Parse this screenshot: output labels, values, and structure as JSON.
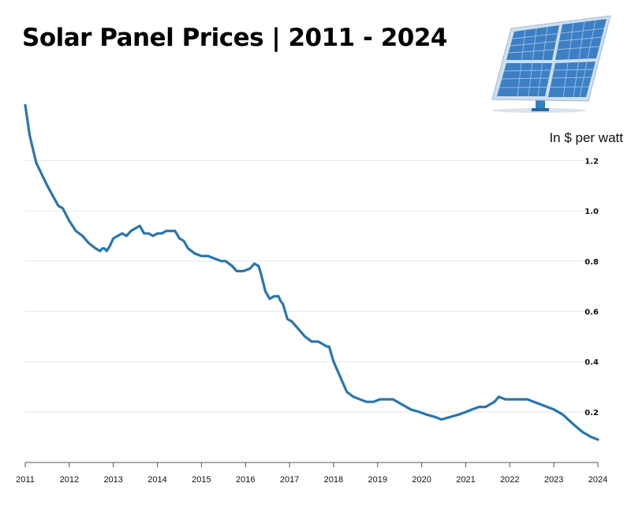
{
  "header": {
    "title": "Solar Panel Prices | 2011 - 2024",
    "unit_label": "In $ per watt"
  },
  "colors": {
    "line": "#2a76ae",
    "grid": "#e6e6e6",
    "axis": "#555555"
  },
  "icons": {
    "illustration": "solar-panel-icon"
  },
  "chart_data": {
    "type": "line",
    "title": "Solar Panel Prices | 2011 - 2024",
    "ylabel": "In $ per watt",
    "xlabel": "",
    "xlim": [
      2011,
      2024
    ],
    "ylim": [
      0.09,
      1.22
    ],
    "x_ticks": [
      "2011",
      "2012",
      "2013",
      "2014",
      "2015",
      "2016",
      "2017",
      "2018",
      "2019",
      "2020",
      "2021",
      "2022",
      "2023",
      "2024"
    ],
    "y_ticks": [
      "0.2",
      "0.4",
      "0.6",
      "0.8",
      "1.0",
      "1.2"
    ],
    "grid": true,
    "series": [
      {
        "x": [
          2011.0,
          2011.1,
          2011.25,
          2011.5,
          2011.75,
          2011.85,
          2012.0,
          2012.15,
          2012.3,
          2012.45,
          2012.6,
          2012.7,
          2012.75,
          2012.8,
          2012.85,
          2012.92,
          2013.0,
          2013.1,
          2013.2,
          2013.3,
          2013.4,
          2013.5,
          2013.6,
          2013.7,
          2013.8,
          2013.9,
          2014.0,
          2014.1,
          2014.2,
          2014.3,
          2014.4,
          2014.5,
          2014.6,
          2014.7,
          2014.85,
          2015.0,
          2015.15,
          2015.3,
          2015.45,
          2015.55,
          2015.7,
          2015.8,
          2015.95,
          2016.1,
          2016.2,
          2016.3,
          2016.35,
          2016.45,
          2016.55,
          2016.65,
          2016.75,
          2016.8,
          2016.85,
          2016.95,
          2017.05,
          2017.15,
          2017.25,
          2017.35,
          2017.5,
          2017.65,
          2017.75,
          2017.85,
          2017.9,
          2018.0,
          2018.15,
          2018.3,
          2018.45,
          2018.6,
          2018.75,
          2018.9,
          2019.05,
          2019.2,
          2019.35,
          2019.55,
          2019.75,
          2019.95,
          2020.1,
          2020.3,
          2020.45,
          2020.65,
          2020.85,
          2021.0,
          2021.15,
          2021.3,
          2021.45,
          2021.55,
          2021.65,
          2021.75,
          2021.9,
          2022.1,
          2022.25,
          2022.4,
          2022.55,
          2022.7,
          2022.85,
          2023.0,
          2023.2,
          2023.45,
          2023.65,
          2023.85,
          2024.0
        ],
        "values": [
          1.42,
          1.3,
          1.19,
          1.1,
          1.02,
          1.01,
          0.96,
          0.92,
          0.9,
          0.87,
          0.85,
          0.84,
          0.85,
          0.85,
          0.84,
          0.86,
          0.89,
          0.9,
          0.91,
          0.9,
          0.92,
          0.93,
          0.94,
          0.91,
          0.91,
          0.9,
          0.91,
          0.91,
          0.92,
          0.92,
          0.92,
          0.89,
          0.88,
          0.85,
          0.83,
          0.82,
          0.82,
          0.81,
          0.8,
          0.8,
          0.78,
          0.76,
          0.76,
          0.77,
          0.79,
          0.78,
          0.75,
          0.68,
          0.65,
          0.66,
          0.66,
          0.64,
          0.63,
          0.57,
          0.56,
          0.54,
          0.52,
          0.5,
          0.48,
          0.48,
          0.47,
          0.46,
          0.46,
          0.4,
          0.34,
          0.28,
          0.26,
          0.25,
          0.24,
          0.24,
          0.25,
          0.25,
          0.25,
          0.23,
          0.21,
          0.2,
          0.19,
          0.18,
          0.17,
          0.18,
          0.19,
          0.2,
          0.21,
          0.22,
          0.22,
          0.23,
          0.24,
          0.26,
          0.25,
          0.25,
          0.25,
          0.25,
          0.24,
          0.23,
          0.22,
          0.21,
          0.19,
          0.15,
          0.12,
          0.1,
          0.09
        ]
      }
    ]
  }
}
